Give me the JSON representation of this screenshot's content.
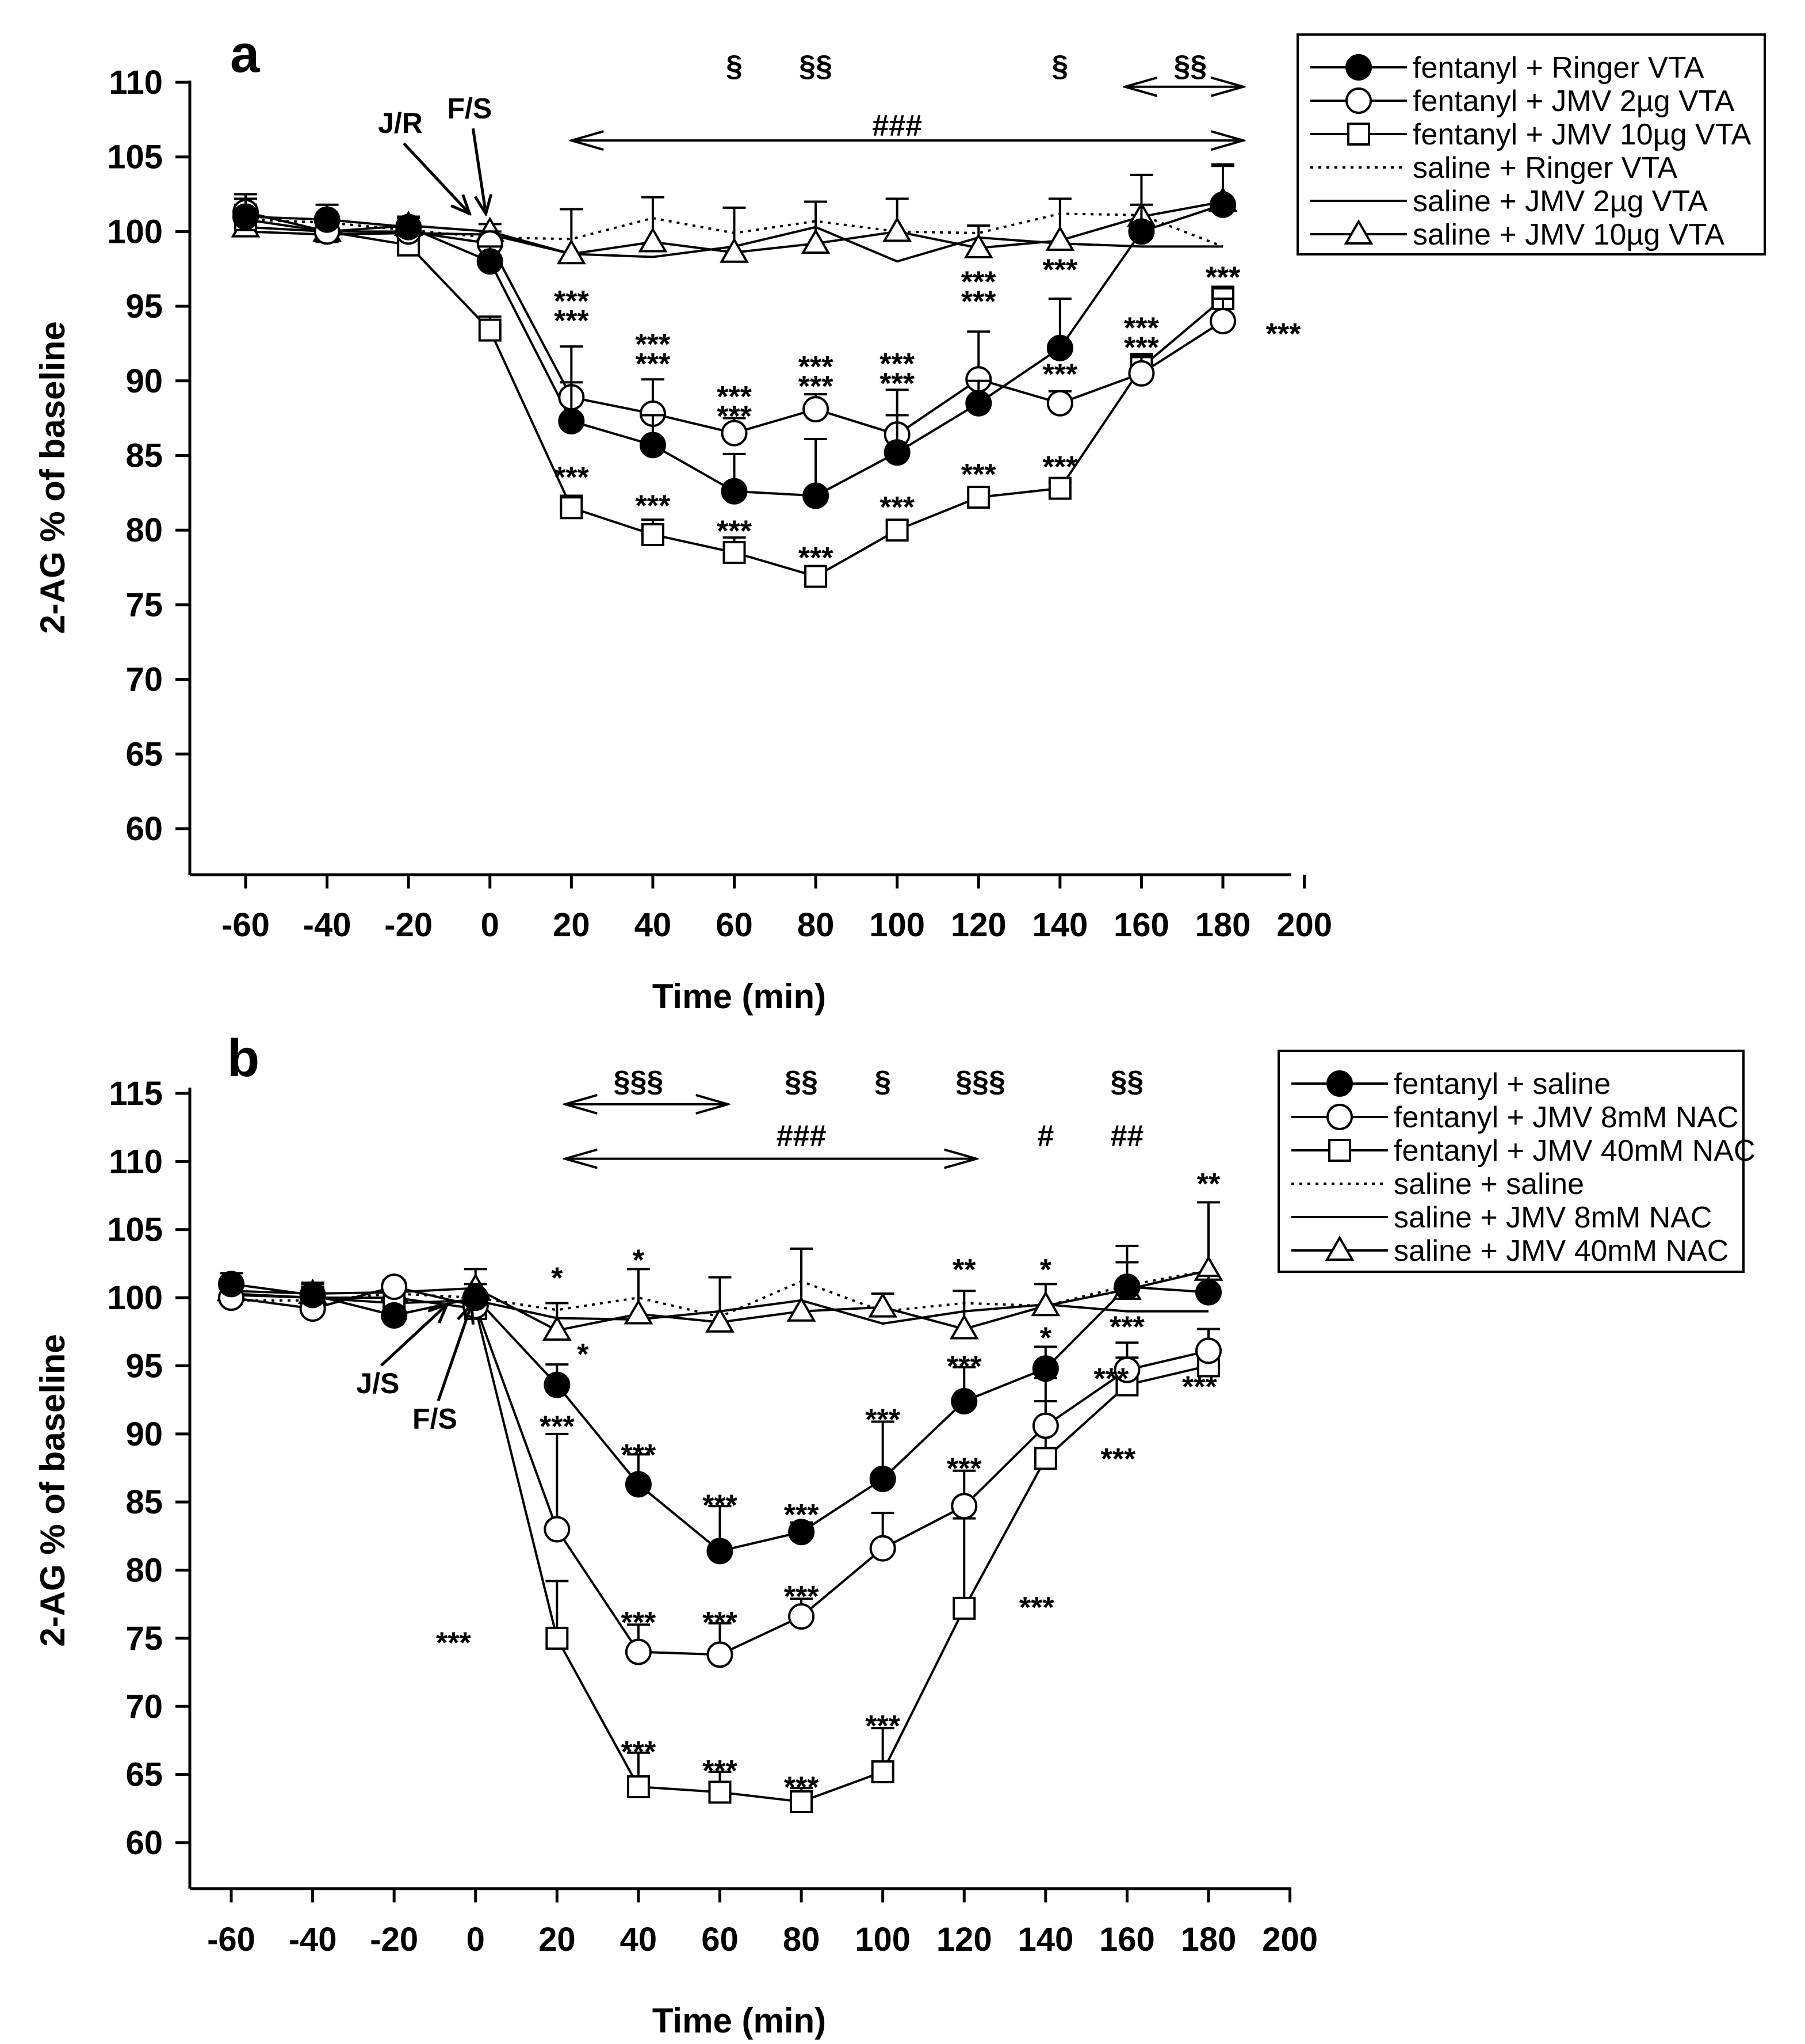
{
  "chart_data": [
    {
      "type": "line",
      "panel_label": "a",
      "xlabel": "Time (min)",
      "ylabel": "2-AG % of baseline",
      "xlim": [
        -70,
        200
      ],
      "ylim": [
        57,
        110
      ],
      "x_ticks": [
        -60,
        -40,
        -20,
        0,
        20,
        40,
        60,
        80,
        100,
        120,
        140,
        160,
        180,
        200
      ],
      "y_ticks": [
        60,
        65,
        70,
        75,
        80,
        85,
        90,
        95,
        100,
        105,
        110
      ],
      "x": [
        -60,
        -40,
        -20,
        0,
        20,
        40,
        60,
        80,
        100,
        120,
        140,
        160,
        180
      ],
      "series": [
        {
          "name": "fentanyl + Ringer VTA",
          "marker": "filled-circle",
          "line": "solid",
          "values": [
            101.0,
            100.8,
            100.3,
            98.0,
            87.3,
            85.7,
            82.6,
            82.3,
            85.2,
            88.5,
            92.2,
            100.0,
            101.8
          ],
          "err": [
            1.2,
            1.0,
            0.7,
            1.0,
            5.0,
            2.0,
            2.5,
            3.8,
            2.5,
            1.5,
            3.3,
            1.8,
            2.6
          ]
        },
        {
          "name": "fentanyl + JMV 2µg VTA",
          "marker": "open-circle",
          "line": "solid",
          "values": [
            101.3,
            100.0,
            100.0,
            99.2,
            88.9,
            87.8,
            86.5,
            88.1,
            86.4,
            90.1,
            88.5,
            90.5,
            94.0
          ],
          "err": [
            1.2,
            0.8,
            0.5,
            0.8,
            1.0,
            2.3,
            1.0,
            1.0,
            3.0,
            3.2,
            0.8,
            1.3,
            1.5
          ]
        },
        {
          "name": "fentanyl + JMV 10µg VTA",
          "marker": "open-square",
          "line": "solid",
          "values": [
            100.8,
            100.0,
            99.1,
            93.4,
            81.5,
            79.7,
            78.5,
            76.9,
            80.0,
            82.2,
            82.8,
            90.9,
            95.5
          ],
          "err": [
            1.0,
            0.6,
            0.5,
            0.9,
            0.8,
            1.0,
            1.0,
            0.6,
            0.6,
            0.4,
            0.4,
            0.8,
            0.8
          ]
        },
        {
          "name": "saline + Ringer VTA",
          "marker": "none",
          "line": "dotted",
          "values": [
            100.8,
            100.6,
            100.1,
            99.6,
            99.5,
            100.9,
            99.9,
            100.7,
            100.0,
            99.9,
            101.2,
            101.1,
            99.0
          ],
          "err": [
            0,
            0,
            0,
            0,
            0,
            0,
            0,
            0,
            0,
            0,
            0,
            0,
            0
          ]
        },
        {
          "name": "saline + JMV 2µg VTA",
          "marker": "none",
          "line": "solid",
          "values": [
            100.0,
            99.8,
            99.9,
            99.8,
            98.5,
            98.3,
            99.0,
            100.3,
            98.0,
            99.6,
            99.2,
            99.0,
            99.0
          ],
          "err": [
            0,
            0,
            0,
            0,
            0,
            0,
            0,
            0,
            0,
            0,
            0,
            0,
            0
          ]
        },
        {
          "name": "saline + JMV 10µg VTA",
          "marker": "open-triangle",
          "line": "solid",
          "values": [
            100.3,
            100.0,
            100.4,
            100.0,
            98.5,
            99.3,
            98.6,
            99.2,
            100.0,
            98.9,
            99.4,
            101.0,
            102.0
          ],
          "err": [
            0.8,
            0.6,
            0.5,
            0.5,
            3.0,
            3.0,
            3.0,
            2.8,
            2.2,
            1.5,
            2.8,
            2.8,
            2.5
          ]
        }
      ],
      "stars": [
        {
          "x": 20,
          "lines": [
            "***",
            "***"
          ],
          "top_y": 96.2
        },
        {
          "x": 20,
          "lines": [
            "***"
          ],
          "top_y": 84.4
        },
        {
          "x": 40,
          "lines": [
            "***",
            "***"
          ],
          "top_y": 93.3
        },
        {
          "x": 40,
          "lines": [
            "***"
          ],
          "top_y": 82.5
        },
        {
          "x": 60,
          "lines": [
            "***",
            "***"
          ],
          "top_y": 89.8
        },
        {
          "x": 60,
          "lines": [
            "***"
          ],
          "top_y": 80.8
        },
        {
          "x": 80,
          "lines": [
            "***",
            "***"
          ],
          "top_y": 91.8
        },
        {
          "x": 80,
          "lines": [
            "***"
          ],
          "top_y": 79.0
        },
        {
          "x": 100,
          "lines": [
            "***",
            "***"
          ],
          "top_y": 92.0
        },
        {
          "x": 100,
          "lines": [
            "***"
          ],
          "top_y": 82.4
        },
        {
          "x": 120,
          "lines": [
            "***",
            "***"
          ],
          "top_y": 97.5
        },
        {
          "x": 120,
          "lines": [
            "***"
          ],
          "top_y": 84.6
        },
        {
          "x": 140,
          "lines": [
            "***"
          ],
          "top_y": 98.3
        },
        {
          "x": 140,
          "lines": [
            "***"
          ],
          "top_y": 91.3
        },
        {
          "x": 140,
          "lines": [
            "***"
          ],
          "top_y": 85.1
        },
        {
          "x": 160,
          "lines": [
            "***",
            "***"
          ],
          "top_y": 94.4
        },
        {
          "x": 180,
          "lines": [
            "***"
          ],
          "top_y": 97.8
        },
        {
          "x": 180,
          "lines": [
            "***"
          ],
          "top_y": 94.0,
          "dx": 35
        }
      ],
      "section_marks": [
        {
          "x": 60,
          "label": "§",
          "y": 111.2
        },
        {
          "x": 80,
          "label": "§§",
          "y": 111.2
        },
        {
          "x": 140,
          "label": "§",
          "y": 111.2
        },
        {
          "x": 172,
          "label": "§§",
          "y": 111.2
        }
      ],
      "hash_marks": [
        {
          "x": 100,
          "label": "###",
          "y": 107.2
        }
      ],
      "ranges": [
        {
          "x1": 20,
          "x2": 185,
          "y": 106.1
        },
        {
          "x1": 156,
          "x2": 185,
          "y": 109.7
        }
      ],
      "arrows": [
        {
          "label": "J/R",
          "x": -5,
          "y": 101.2,
          "label_x": -22,
          "label_y": 106.6
        },
        {
          "label": "F/S",
          "x": -1,
          "y": 101.2,
          "label_x": -5,
          "label_y": 107.6
        }
      ]
    },
    {
      "type": "line",
      "panel_label": "b",
      "xlabel": "Time (min)",
      "ylabel": "2-AG % of baseline",
      "xlim": [
        -70,
        200
      ],
      "ylim": [
        57,
        115
      ],
      "x_ticks": [
        -60,
        -40,
        -20,
        0,
        20,
        40,
        60,
        80,
        100,
        120,
        140,
        160,
        180,
        200
      ],
      "y_ticks": [
        60,
        65,
        70,
        75,
        80,
        85,
        90,
        95,
        100,
        105,
        110,
        115
      ],
      "x": [
        -60,
        -40,
        -20,
        0,
        20,
        40,
        60,
        80,
        100,
        120,
        140,
        160,
        180
      ],
      "series": [
        {
          "name": "fentanyl + saline",
          "marker": "filled-circle",
          "line": "solid",
          "values": [
            101.0,
            100.2,
            98.7,
            100.0,
            93.6,
            86.3,
            81.4,
            82.8,
            86.7,
            92.4,
            94.8,
            100.8,
            100.4
          ],
          "err": [
            0.8,
            0.8,
            0.6,
            1.0,
            1.5,
            2.2,
            3.3,
            0.7,
            4.2,
            2.5,
            1.6,
            3.0,
            1.2
          ]
        },
        {
          "name": "fentanyl + JMV 8mM NAC",
          "marker": "open-circle",
          "line": "solid",
          "values": [
            100.0,
            99.2,
            100.8,
            99.4,
            83.0,
            74.0,
            73.8,
            76.6,
            81.6,
            84.7,
            90.6,
            94.7,
            96.1
          ],
          "err": [
            0.6,
            1.0,
            0.5,
            0.5,
            7.0,
            2.0,
            2.3,
            1.3,
            2.6,
            2.6,
            3.5,
            2.0,
            1.6
          ]
        },
        {
          "name": "fentanyl + JMV 40mM NAC",
          "marker": "open-square",
          "line": "solid",
          "values": [
            100.3,
            100.0,
            100.0,
            99.2,
            75.0,
            64.1,
            63.7,
            63.0,
            65.2,
            77.2,
            88.2,
            93.6,
            95.0
          ],
          "err": [
            0.6,
            0.8,
            0.5,
            0.5,
            4.2,
            2.5,
            1.5,
            1.0,
            3.2,
            6.6,
            4.2,
            2.0,
            1.5
          ]
        },
        {
          "name": "saline + saline",
          "marker": "none",
          "line": "dotted",
          "values": [
            99.8,
            99.8,
            100.3,
            100.0,
            99.1,
            100.0,
            98.6,
            101.2,
            99.0,
            99.6,
            99.4,
            100.9,
            102.0
          ],
          "err": [
            0,
            0,
            0,
            0,
            0,
            0,
            0,
            0,
            0,
            0,
            0,
            0,
            0
          ]
        },
        {
          "name": "saline + JMV 8mM NAC",
          "marker": "none",
          "line": "solid",
          "values": [
            100.2,
            100.0,
            99.6,
            99.8,
            98.5,
            98.4,
            99.0,
            99.8,
            98.1,
            99.0,
            99.5,
            99.0,
            99.0
          ],
          "err": [
            0,
            0,
            0,
            0,
            0,
            0,
            0,
            0,
            0,
            0,
            0,
            0,
            0
          ]
        },
        {
          "name": "saline + JMV 40mM NAC",
          "marker": "open-triangle",
          "line": "solid",
          "values": [
            100.5,
            100.3,
            100.4,
            100.7,
            97.6,
            98.8,
            98.2,
            99.0,
            99.3,
            97.7,
            99.4,
            100.6,
            102.0
          ],
          "err": [
            0.8,
            0.8,
            0.6,
            1.4,
            2.0,
            3.3,
            3.3,
            4.6,
            1.0,
            2.8,
            1.6,
            2.0,
            5.0
          ]
        }
      ],
      "stars": [
        {
          "x": 20,
          "lines": [
            "*"
          ],
          "top_y": 102.4
        },
        {
          "x": 20,
          "lines": [
            "*"
          ],
          "top_y": 96.8,
          "dx": 15
        },
        {
          "x": 20,
          "lines": [
            "***"
          ],
          "top_y": 91.5
        },
        {
          "x": 20,
          "lines": [
            "***"
          ],
          "top_y": 75.6,
          "dx": -60
        },
        {
          "x": 40,
          "lines": [
            "*"
          ],
          "top_y": 103.7
        },
        {
          "x": 40,
          "lines": [
            "***"
          ],
          "top_y": 89.4
        },
        {
          "x": 40,
          "lines": [
            "***"
          ],
          "top_y": 77.1
        },
        {
          "x": 40,
          "lines": [
            "***"
          ],
          "top_y": 67.6
        },
        {
          "x": 60,
          "lines": [
            "***"
          ],
          "top_y": 85.7
        },
        {
          "x": 60,
          "lines": [
            "***"
          ],
          "top_y": 77.1
        },
        {
          "x": 60,
          "lines": [
            "***"
          ],
          "top_y": 66.2
        },
        {
          "x": 80,
          "lines": [
            "***"
          ],
          "top_y": 85.0
        },
        {
          "x": 80,
          "lines": [
            "***"
          ],
          "top_y": 79.0
        },
        {
          "x": 80,
          "lines": [
            "***"
          ],
          "top_y": 65.0
        },
        {
          "x": 100,
          "lines": [
            "***"
          ],
          "top_y": 92.0
        },
        {
          "x": 100,
          "lines": [
            "***"
          ],
          "top_y": 69.5
        },
        {
          "x": 120,
          "lines": [
            "**"
          ],
          "top_y": 103.0
        },
        {
          "x": 120,
          "lines": [
            "***"
          ],
          "top_y": 95.9
        },
        {
          "x": 120,
          "lines": [
            "***"
          ],
          "top_y": 88.4
        },
        {
          "x": 120,
          "lines": [
            "***"
          ],
          "top_y": 78.2,
          "dx": 42
        },
        {
          "x": 140,
          "lines": [
            "*"
          ],
          "top_y": 103.0
        },
        {
          "x": 140,
          "lines": [
            "*"
          ],
          "top_y": 98.0
        },
        {
          "x": 140,
          "lines": [
            "***"
          ],
          "top_y": 95.0,
          "dx": 38
        },
        {
          "x": 140,
          "lines": [
            "***"
          ],
          "top_y": 89.1,
          "dx": 42
        },
        {
          "x": 160,
          "lines": [
            "***"
          ],
          "top_y": 98.8
        },
        {
          "x": 160,
          "lines": [
            "***"
          ],
          "top_y": 94.4,
          "dx": 42
        },
        {
          "x": 180,
          "lines": [
            "**"
          ],
          "top_y": 109.3
        }
      ],
      "section_marks": [
        {
          "x": 40,
          "label": "§§§",
          "y": 116.0
        },
        {
          "x": 80,
          "label": "§§",
          "y": 116.0
        },
        {
          "x": 100,
          "label": "§",
          "y": 116.0
        },
        {
          "x": 124,
          "label": "§§§",
          "y": 116.0
        },
        {
          "x": 160,
          "label": "§§",
          "y": 116.0
        }
      ],
      "hash_marks": [
        {
          "x": 80,
          "label": "###",
          "y": 112.0
        },
        {
          "x": 140,
          "label": "#",
          "y": 112.0
        },
        {
          "x": 160,
          "label": "##",
          "y": 112.0
        }
      ],
      "ranges": [
        {
          "x1": 22,
          "x2": 62,
          "y": 114.2
        },
        {
          "x1": 22,
          "x2": 123,
          "y": 110.2
        }
      ],
      "arrows": [
        {
          "label": "J/S",
          "x": -7,
          "y": 99.5,
          "label_x": -24,
          "label_y": 93.0
        },
        {
          "label": "F/S",
          "x": -1,
          "y": 99.5,
          "label_x": -10,
          "label_y": 90.4
        }
      ]
    }
  ]
}
